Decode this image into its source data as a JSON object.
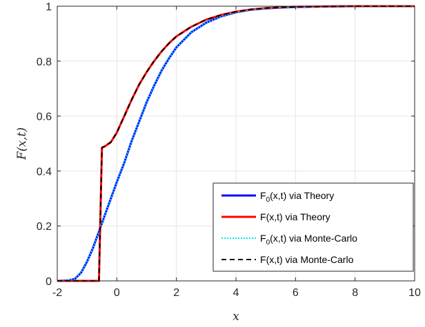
{
  "chart_data": {
    "type": "line",
    "title": "",
    "xlabel": "x",
    "ylabel": "F(x,t)",
    "xlim": [
      -2,
      10
    ],
    "ylim": [
      0,
      1
    ],
    "grid": true,
    "legend_position": "bottom-right",
    "x_ticks": [
      -2,
      0,
      2,
      4,
      6,
      8,
      10
    ],
    "y_ticks": [
      0,
      0.2,
      0.4,
      0.6,
      0.8,
      1
    ],
    "x_tick_labels": [
      "-2",
      "0",
      "2",
      "4",
      "6",
      "8",
      "10"
    ],
    "y_tick_labels": [
      "0",
      "0.2",
      "0.4",
      "0.6",
      "0.8",
      "1"
    ],
    "series": [
      {
        "name": "F_0(x,t) via Theory",
        "legend_label": {
          "main": "F",
          "sub": "0",
          "rest": "(x,t) via Theory"
        },
        "color": "#0000ff",
        "style": "solid",
        "x": [
          -2,
          -1.6,
          -1.4,
          -1.2,
          -1.0,
          -0.8,
          -0.6,
          -0.4,
          -0.2,
          0,
          0.25,
          0.5,
          0.75,
          1.0,
          1.25,
          1.5,
          1.75,
          2.0,
          2.5,
          3.0,
          3.5,
          4.0,
          4.5,
          5.0,
          5.5,
          6.0,
          7.0,
          8.0,
          9.0,
          10.0
        ],
        "y": [
          0,
          0.002,
          0.008,
          0.03,
          0.07,
          0.12,
          0.18,
          0.24,
          0.3,
          0.36,
          0.43,
          0.51,
          0.58,
          0.65,
          0.71,
          0.765,
          0.81,
          0.85,
          0.905,
          0.94,
          0.963,
          0.978,
          0.987,
          0.992,
          0.995,
          0.997,
          0.999,
          1.0,
          1.0,
          1.0
        ]
      },
      {
        "name": "F(x,t) via Theory",
        "legend_label": {
          "main": "F",
          "sub": "",
          "rest": "(x,t) via Theory"
        },
        "color": "#ff0000",
        "style": "solid",
        "x": [
          -2,
          -0.6,
          -0.6,
          -0.5,
          -0.4,
          -0.2,
          0,
          0.25,
          0.5,
          0.75,
          1.0,
          1.25,
          1.5,
          1.75,
          2.0,
          2.5,
          3.0,
          3.5,
          4.0,
          4.5,
          5.0,
          5.5,
          6.0,
          7.0,
          8.0,
          9.0,
          10.0
        ],
        "y": [
          0,
          0,
          0.0,
          0.485,
          0.49,
          0.505,
          0.54,
          0.6,
          0.66,
          0.715,
          0.76,
          0.8,
          0.835,
          0.865,
          0.89,
          0.925,
          0.951,
          0.968,
          0.98,
          0.988,
          0.993,
          0.996,
          0.998,
          0.999,
          1.0,
          1.0,
          1.0
        ]
      },
      {
        "name": "F_0(x,t) via Monte-Carlo",
        "legend_label": {
          "main": "F",
          "sub": "0",
          "rest": "(x,t) via Monte-Carlo"
        },
        "color": "#00e5ee",
        "style": "dotted",
        "x": [
          -2,
          -1.6,
          -1.4,
          -1.2,
          -1.0,
          -0.8,
          -0.6,
          -0.4,
          -0.2,
          0,
          0.25,
          0.5,
          0.75,
          1.0,
          1.25,
          1.5,
          1.75,
          2.0,
          2.5,
          3.0,
          3.5,
          4.0,
          4.5,
          5.0,
          5.5,
          6.0,
          7.0,
          8.0,
          9.0,
          10.0
        ],
        "y": [
          0,
          0.002,
          0.008,
          0.03,
          0.07,
          0.12,
          0.18,
          0.24,
          0.3,
          0.36,
          0.43,
          0.51,
          0.58,
          0.65,
          0.71,
          0.765,
          0.81,
          0.85,
          0.905,
          0.94,
          0.963,
          0.978,
          0.987,
          0.992,
          0.995,
          0.997,
          0.999,
          1.0,
          1.0,
          1.0
        ]
      },
      {
        "name": "F(x,t) via Monte-Carlo",
        "legend_label": {
          "main": "F",
          "sub": "",
          "rest": "(x,t) via Monte-Carlo"
        },
        "color": "#000000",
        "style": "dashed",
        "x": [
          -2,
          -0.6,
          -0.6,
          -0.5,
          -0.4,
          -0.2,
          0,
          0.25,
          0.5,
          0.75,
          1.0,
          1.25,
          1.5,
          1.75,
          2.0,
          2.5,
          3.0,
          3.5,
          4.0,
          4.5,
          5.0,
          5.5,
          6.0,
          7.0,
          8.0,
          9.0,
          10.0
        ],
        "y": [
          0,
          0,
          0.0,
          0.485,
          0.49,
          0.505,
          0.54,
          0.6,
          0.66,
          0.715,
          0.76,
          0.8,
          0.835,
          0.865,
          0.89,
          0.925,
          0.951,
          0.968,
          0.98,
          0.988,
          0.993,
          0.996,
          0.998,
          0.999,
          1.0,
          1.0,
          1.0
        ]
      }
    ]
  }
}
